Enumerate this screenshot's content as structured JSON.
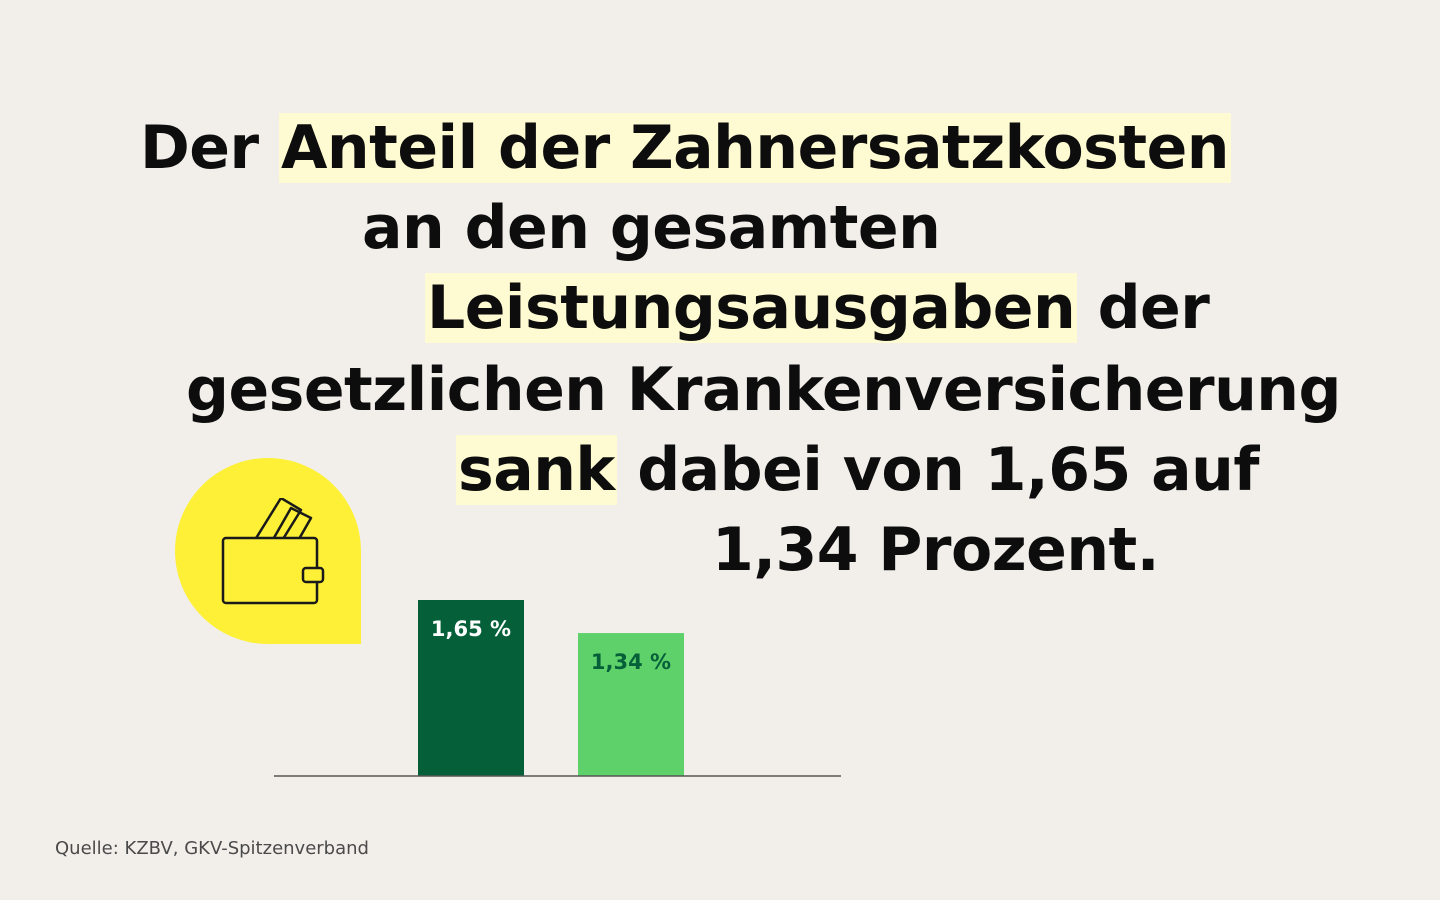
{
  "headline": {
    "line1": {
      "pre": "Der ",
      "hl": "Anteil der Zahnersatzkosten",
      "post": ""
    },
    "line2": {
      "pre": "an den gesamten",
      "hl": "",
      "post": ""
    },
    "line3": {
      "pre": "",
      "hl": "Leistungsausgaben",
      "post": " der"
    },
    "line4": {
      "pre": "gesetzlichen Krankenversicherung",
      "hl": "",
      "post": ""
    },
    "line5": {
      "pre": "",
      "hl": "sank",
      "post": " dabei von 1,65 auf"
    },
    "line6": {
      "pre": "1,34 Prozent.",
      "hl": "",
      "post": ""
    }
  },
  "icon": {
    "name": "wallet-icon",
    "badge_color": "#fdf037",
    "stroke_color": "#1a1a1a"
  },
  "source": "Quelle: KZBV, GKV-Spitzenverband",
  "colors": {
    "background": "#f2efeb",
    "highlight": "#fefbd2",
    "bar_dark": "#05603a",
    "bar_light": "#5fd16b",
    "baseline": "#555555"
  },
  "chart_data": {
    "type": "bar",
    "categories": [
      "",
      ""
    ],
    "values": [
      1.65,
      1.34
    ],
    "labels": [
      "1,65 %",
      "1,34 %"
    ],
    "colors": [
      "#05603a",
      "#5fd16b"
    ],
    "label_colors": [
      "#ffffff",
      "#05603a"
    ],
    "ylim": [
      0,
      1.65
    ],
    "grid": false,
    "title": "",
    "xlabel": "",
    "ylabel": ""
  }
}
